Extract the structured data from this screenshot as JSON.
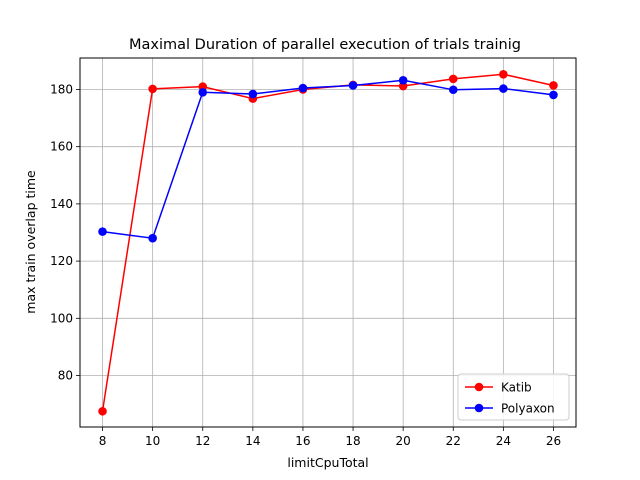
{
  "chart_data": {
    "type": "line",
    "title": "Maximal Duration of parallel execution of trials trainig",
    "xlabel": "limitCpuTotal",
    "ylabel": "max train overlap time",
    "x": [
      8,
      10,
      12,
      14,
      16,
      18,
      20,
      22,
      24,
      26
    ],
    "xlim": [
      7.1,
      26.9
    ],
    "ylim": [
      62,
      191
    ],
    "xticks": [
      8,
      10,
      12,
      14,
      16,
      18,
      20,
      22,
      24,
      26
    ],
    "yticks": [
      80,
      100,
      120,
      140,
      160,
      180
    ],
    "grid": true,
    "legend_position": "lower-right",
    "series": [
      {
        "name": "Katib",
        "color": "#ff0000",
        "values": [
          67.5,
          180.2,
          181.0,
          176.8,
          180.0,
          181.6,
          181.2,
          183.7,
          185.3,
          181.4
        ]
      },
      {
        "name": "Polyaxon",
        "color": "#0000ff",
        "values": [
          130.3,
          128.0,
          179.0,
          178.4,
          180.5,
          181.4,
          183.2,
          179.9,
          180.3,
          178.1
        ]
      }
    ]
  }
}
